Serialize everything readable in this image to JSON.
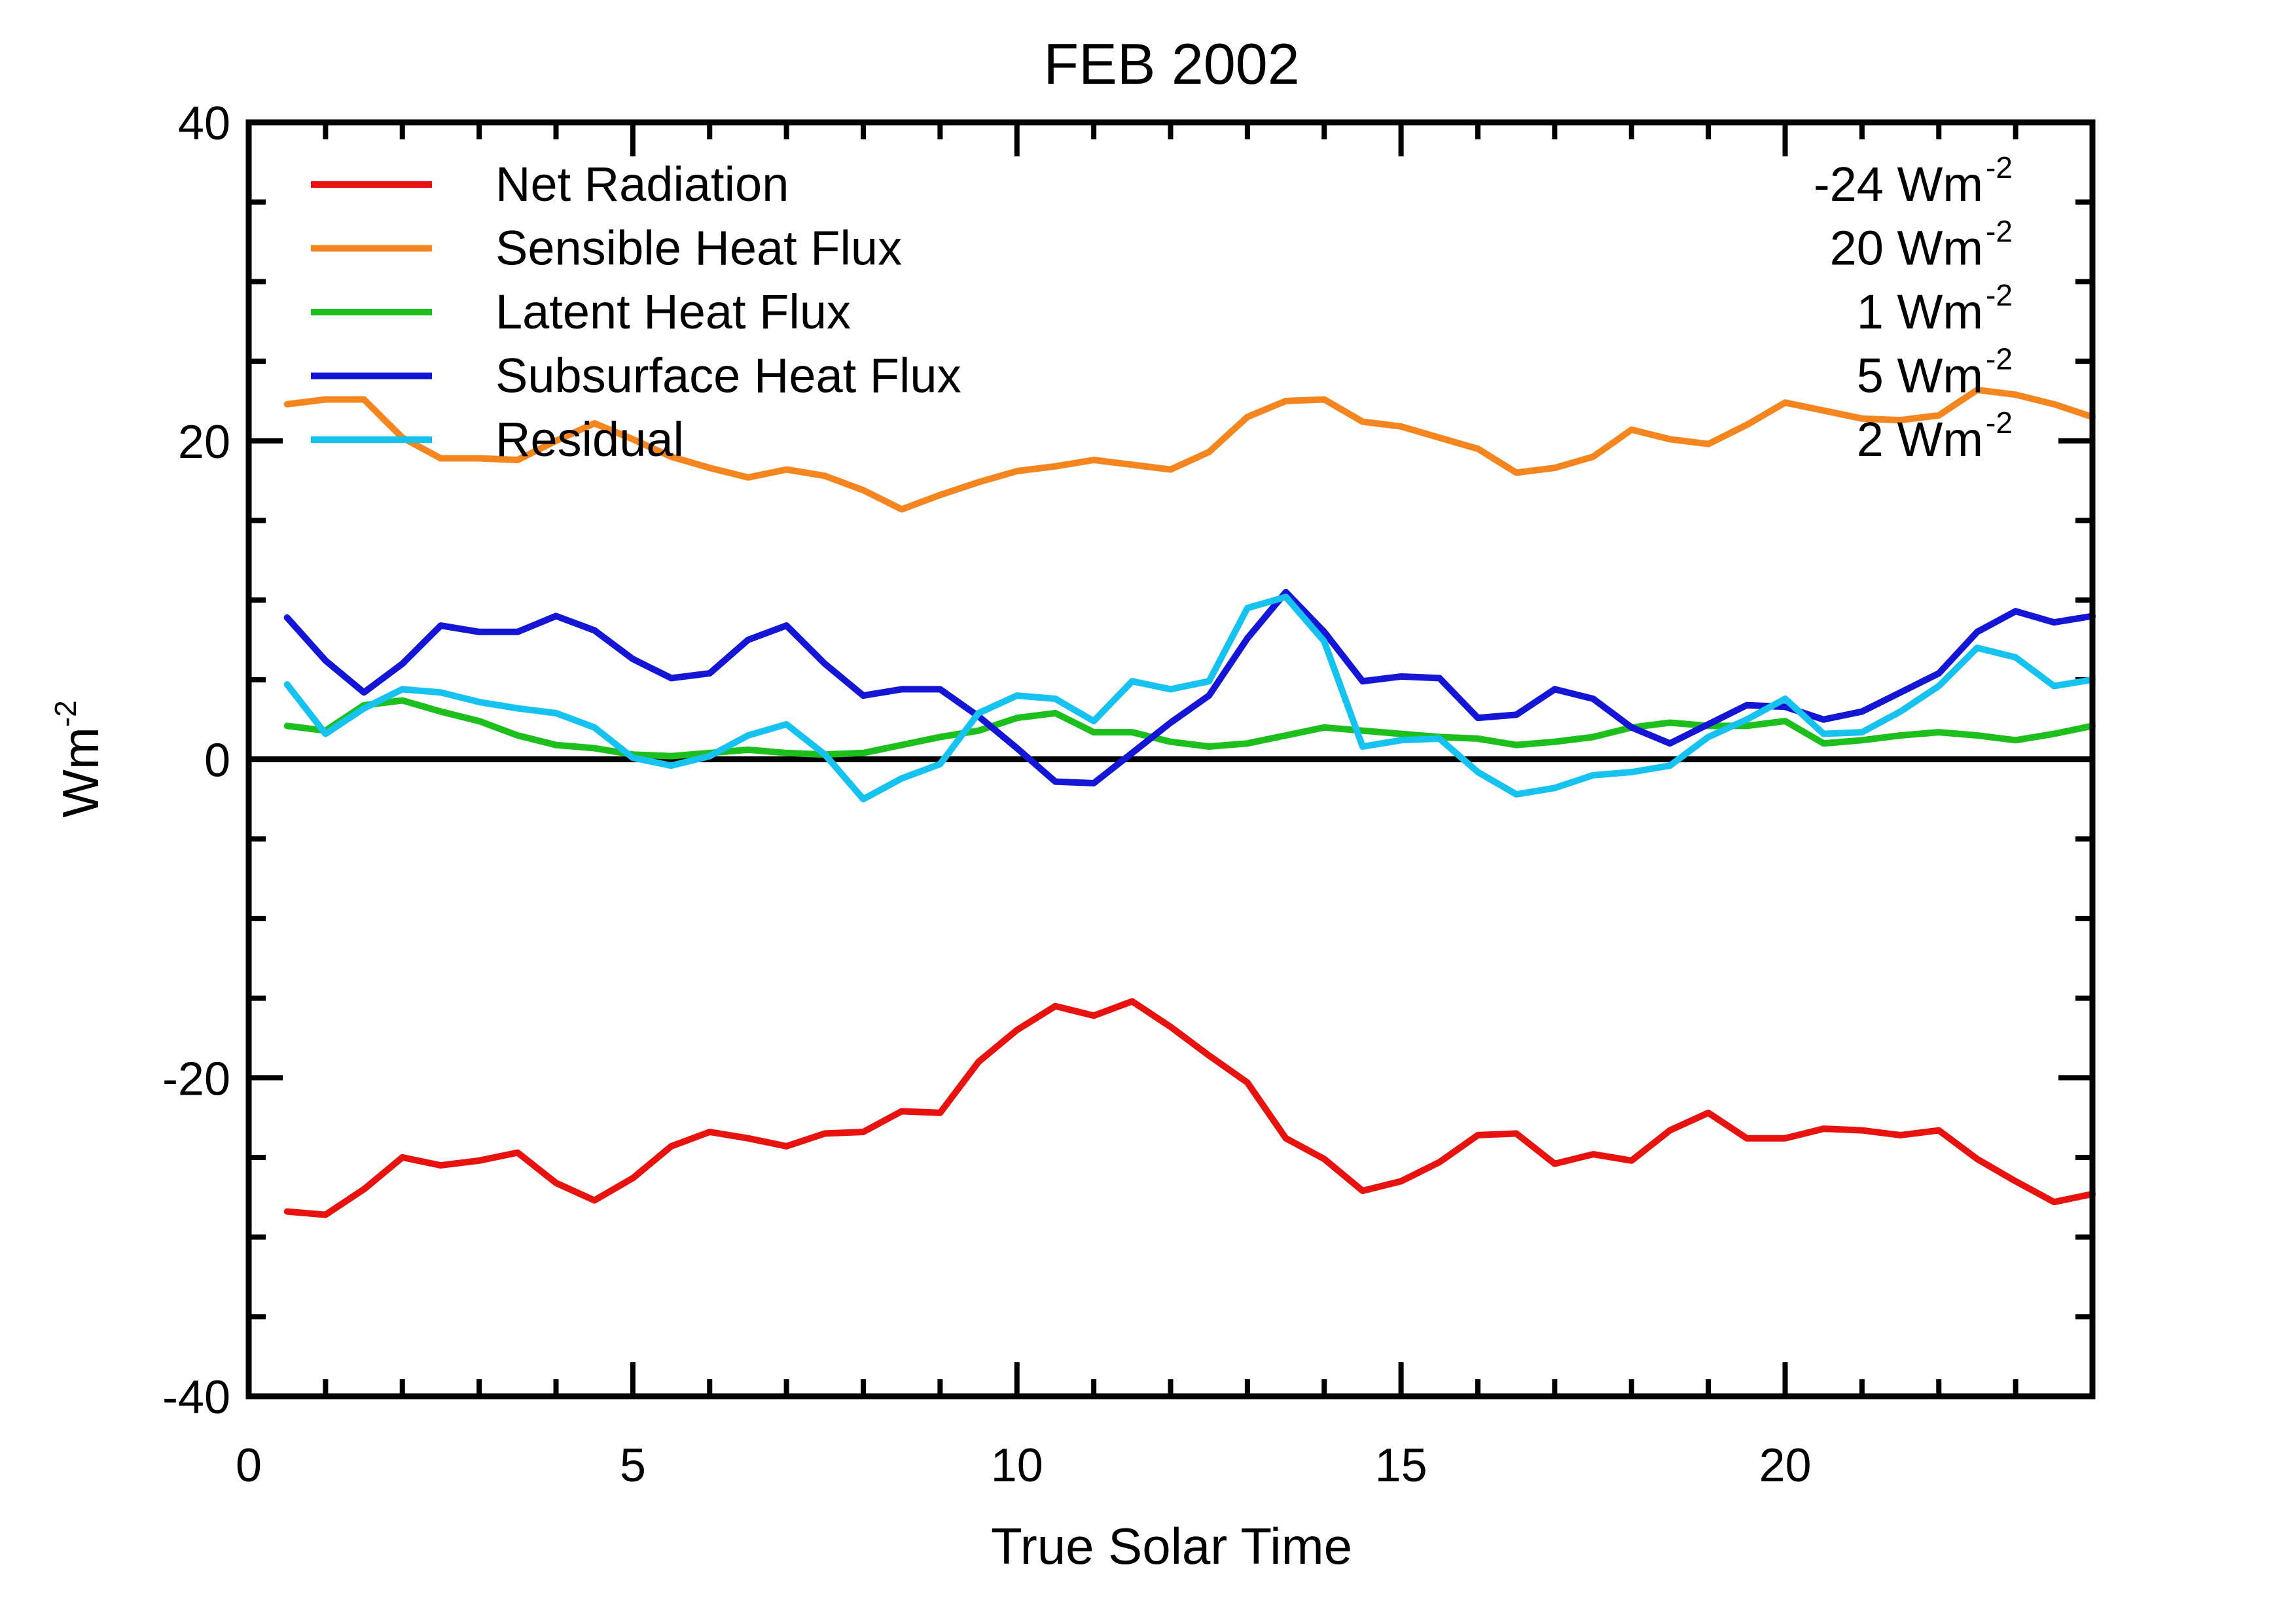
{
  "chart_data": {
    "type": "line",
    "title": "FEB 2002",
    "xlabel": "True Solar Time",
    "ylabel": "Wm",
    "ylabel_sup": "-2",
    "xlim": [
      0,
      24
    ],
    "ylim": [
      -40,
      40
    ],
    "xticks": [
      0,
      5,
      10,
      15,
      20
    ],
    "yticks": [
      -40,
      -20,
      0,
      20,
      40
    ],
    "legend_position": "top",
    "x": [
      0.5,
      1,
      1.5,
      2,
      2.5,
      3,
      3.5,
      4,
      4.5,
      5,
      5.5,
      6,
      6.5,
      7,
      7.5,
      8,
      8.5,
      9,
      9.5,
      10,
      10.5,
      11,
      11.5,
      12,
      12.5,
      13,
      13.5,
      14,
      14.5,
      15,
      15.5,
      16,
      16.5,
      17,
      17.5,
      18,
      18.5,
      19,
      19.5,
      20,
      20.5,
      21,
      21.5,
      22,
      22.5,
      23,
      23.5,
      24
    ],
    "series": [
      {
        "name": "Net Radiation",
        "mean_label": "-24 Wm",
        "mean_sup": "-2",
        "color": "#e8120f",
        "values": [
          -28.4,
          -28.6,
          -27.0,
          -25.0,
          -25.5,
          -25.2,
          -24.7,
          -26.6,
          -27.7,
          -26.3,
          -24.3,
          -23.4,
          -23.8,
          -24.3,
          -23.5,
          -23.4,
          -22.1,
          -22.2,
          -19.0,
          -17.0,
          -15.5,
          -16.1,
          -15.2,
          -16.8,
          -18.6,
          -20.3,
          -23.8,
          -25.1,
          -27.1,
          -26.5,
          -25.3,
          -23.6,
          -23.5,
          -25.4,
          -24.8,
          -25.2,
          -23.3,
          -22.2,
          -23.8,
          -23.8,
          -23.2,
          -23.3,
          -23.6,
          -23.3,
          -25.1,
          -26.5,
          -27.8,
          -27.3
        ]
      },
      {
        "name": "Sensible Heat Flux",
        "mean_label": "20 Wm",
        "mean_sup": "-2",
        "color": "#f5861f",
        "values": [
          22.3,
          22.6,
          22.6,
          20.2,
          18.9,
          18.9,
          18.8,
          20.0,
          21.1,
          20.1,
          19.0,
          18.3,
          17.7,
          18.2,
          17.8,
          16.9,
          15.7,
          16.6,
          17.4,
          18.1,
          18.4,
          18.8,
          18.5,
          18.2,
          19.3,
          21.5,
          22.5,
          22.6,
          21.2,
          20.9,
          20.2,
          19.5,
          18.0,
          18.3,
          19.0,
          20.7,
          20.1,
          19.8,
          21.0,
          22.4,
          21.9,
          21.4,
          21.3,
          21.6,
          23.2,
          22.9,
          22.3,
          21.5
        ]
      },
      {
        "name": "Latent Heat Flux",
        "mean_label": "1 Wm",
        "mean_sup": "-2",
        "color": "#1cbf1c",
        "values": [
          2.1,
          1.8,
          3.4,
          3.7,
          3.0,
          2.4,
          1.5,
          0.9,
          0.7,
          0.3,
          0.2,
          0.4,
          0.6,
          0.4,
          0.3,
          0.4,
          0.9,
          1.4,
          1.8,
          2.6,
          2.9,
          1.7,
          1.7,
          1.1,
          0.8,
          1.0,
          1.5,
          2.0,
          1.8,
          1.6,
          1.4,
          1.3,
          0.9,
          1.1,
          1.4,
          2.0,
          2.3,
          2.1,
          2.1,
          2.4,
          1.0,
          1.2,
          1.5,
          1.7,
          1.5,
          1.2,
          1.6,
          2.1
        ]
      },
      {
        "name": "Subsurface Heat Flux",
        "mean_label": "5 Wm",
        "mean_sup": "-2",
        "color": "#1515d6",
        "values": [
          8.9,
          6.2,
          4.2,
          6.0,
          8.4,
          8.0,
          8.0,
          9.0,
          8.1,
          6.3,
          5.1,
          5.4,
          7.5,
          8.4,
          6.0,
          4.0,
          4.4,
          4.4,
          2.7,
          0.7,
          -1.4,
          -1.5,
          0.4,
          2.3,
          4.0,
          7.6,
          10.5,
          8.0,
          4.9,
          5.2,
          5.1,
          2.6,
          2.8,
          4.4,
          3.8,
          2.0,
          1.0,
          2.2,
          3.4,
          3.3,
          2.5,
          3.0,
          4.2,
          5.4,
          8.0,
          9.3,
          8.6,
          9.0
        ]
      },
      {
        "name": "Residual",
        "mean_label": "2 Wm",
        "mean_sup": "-2",
        "color": "#16c2ef",
        "values": [
          4.7,
          1.6,
          3.2,
          4.4,
          4.2,
          3.6,
          3.2,
          2.9,
          2.0,
          0.1,
          -0.4,
          0.2,
          1.5,
          2.2,
          0.3,
          -2.5,
          -1.2,
          -0.3,
          2.9,
          4.0,
          3.8,
          2.4,
          4.9,
          4.4,
          4.9,
          9.5,
          10.2,
          7.4,
          0.8,
          1.2,
          1.3,
          -0.8,
          -2.2,
          -1.8,
          -1.0,
          -0.8,
          -0.4,
          1.4,
          2.5,
          3.8,
          1.6,
          1.7,
          3.0,
          4.6,
          7.0,
          6.4,
          4.6,
          5.0
        ]
      }
    ]
  }
}
